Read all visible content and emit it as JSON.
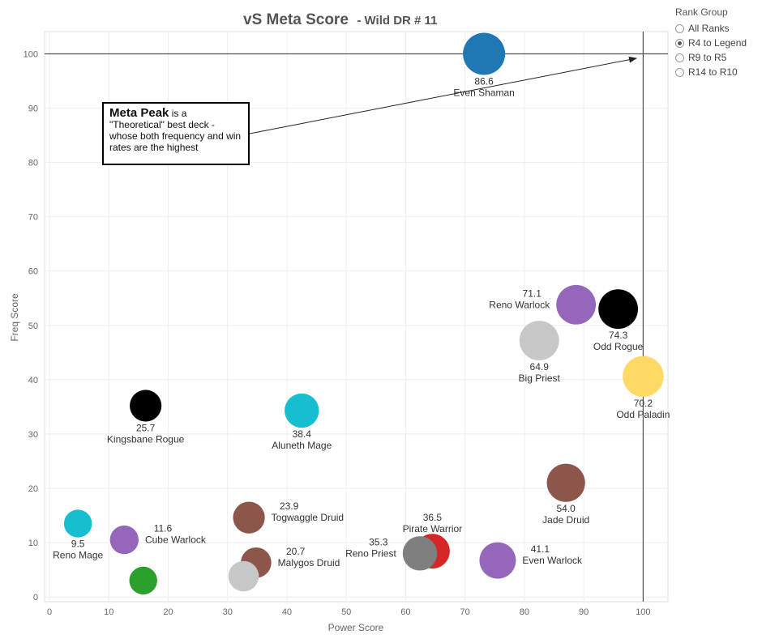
{
  "chart_data": {
    "type": "scatter",
    "title": "vS Meta Score",
    "subtitle": "- Wild DR # 11",
    "xlabel": "Power Score",
    "ylabel": "Freq Score",
    "xlim": [
      0,
      105
    ],
    "ylim": [
      0,
      105
    ],
    "xticks": [
      0,
      10,
      20,
      30,
      40,
      50,
      60,
      70,
      80,
      90,
      100
    ],
    "yticks": [
      0,
      10,
      20,
      30,
      40,
      50,
      60,
      70,
      80,
      90,
      100
    ],
    "grid": true,
    "reference_lines": {
      "x": 100,
      "y": 100
    },
    "points": [
      {
        "name": "Even Shaman",
        "value": "86.6",
        "x": 73.2,
        "y": 100,
        "size": 1.0,
        "color": "#1f77b4",
        "label_side": "below"
      },
      {
        "name": "Reno Warlock",
        "value": "71.1",
        "x": 88.7,
        "y": 53.8,
        "size": 0.9,
        "color": "#9467bd",
        "label_side": "left"
      },
      {
        "name": "Odd Rogue",
        "value": "74.3",
        "x": 95.8,
        "y": 53.0,
        "size": 0.9,
        "color": "#000000",
        "label_side": "below"
      },
      {
        "name": "Big Priest",
        "value": "64.9",
        "x": 82.5,
        "y": 47.2,
        "size": 0.9,
        "color": "#c7c7c7",
        "label_side": "below"
      },
      {
        "name": "Odd Paladin",
        "value": "70.2",
        "x": 100,
        "y": 40.6,
        "size": 0.95,
        "color": "#ffd966",
        "label_side": "below"
      },
      {
        "name": "Kingsbane Rogue",
        "value": "25.7",
        "x": 16.2,
        "y": 35.2,
        "size": 0.6,
        "color": "#000000",
        "label_side": "below"
      },
      {
        "name": "Aluneth Mage",
        "value": "38.4",
        "x": 42.5,
        "y": 34.3,
        "size": 0.7,
        "color": "#17becf",
        "label_side": "below"
      },
      {
        "name": "Jade Druid",
        "value": "54.0",
        "x": 87.0,
        "y": 21.0,
        "size": 0.85,
        "color": "#8c564b",
        "label_side": "below"
      },
      {
        "name": "Togwaggle Druid",
        "value": "23.9",
        "x": 33.6,
        "y": 14.6,
        "size": 0.6,
        "color": "#8c564b",
        "label_side": "right"
      },
      {
        "name": "Reno Mage",
        "value": "9.5",
        "x": 4.8,
        "y": 13.5,
        "size": 0.45,
        "color": "#17becf",
        "label_side": "below"
      },
      {
        "name": "Cube Warlock",
        "value": "11.6",
        "x": 12.6,
        "y": 10.5,
        "size": 0.48,
        "color": "#9467bd",
        "label_side": "right"
      },
      {
        "name": "Pirate Warrior",
        "value": "36.5",
        "x": 64.5,
        "y": 8.4,
        "size": 0.72,
        "color": "#d62728",
        "label_side": "above"
      },
      {
        "name": "Reno Priest",
        "value": "35.3",
        "x": 62.4,
        "y": 8.0,
        "size": 0.7,
        "color": "#7f7f7f",
        "label_side": "left"
      },
      {
        "name": "Even Warlock",
        "value": "41.1",
        "x": 75.5,
        "y": 6.7,
        "size": 0.78,
        "color": "#9467bd",
        "label_side": "right"
      },
      {
        "name": "Malygos Druid",
        "value": "20.7",
        "x": 34.8,
        "y": 6.3,
        "size": 0.55,
        "color": "#8c564b",
        "label_side": "right"
      },
      {
        "name": "",
        "value": "",
        "x": 32.7,
        "y": 3.8,
        "size": 0.55,
        "color": "#c7c7c7",
        "label_side": "none"
      },
      {
        "name": "",
        "value": "",
        "x": 15.8,
        "y": 3.0,
        "size": 0.45,
        "color": "#2ca02c",
        "label_side": "none"
      }
    ]
  },
  "annotation": {
    "bold": "Meta Peak",
    "text": " is a \"Theoretical\" best deck - whose both frequency and win rates are the highest"
  },
  "legend": {
    "title": "Rank Group",
    "options": [
      "All Ranks",
      "R4 to Legend",
      "R9 to R5",
      "R14 to R10"
    ],
    "selected_index": 1
  }
}
